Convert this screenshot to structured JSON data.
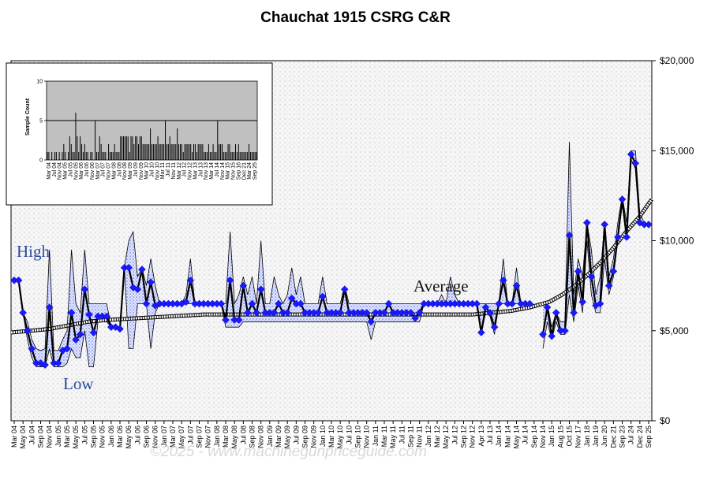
{
  "title": "Chauchat 1915 CSRG C&R",
  "watermark": "©2025 - www.machinegunpriceguide.com",
  "colors": {
    "plot_bg": "#f2f2f2",
    "grid_dot": "#b8b8c8",
    "avg_fill": "#5a6eea",
    "diamond": "#1a1aff",
    "price_line": "#000000",
    "inset_bg": "#c0c0c0"
  },
  "chart_data": [
    {
      "type": "line",
      "title": "Chauchat 1915 CSRG C&R",
      "ylim": [
        0,
        20000
      ],
      "y_ticks": [
        "$0",
        "$5,000",
        "$10,000",
        "$15,000",
        "$20,000"
      ],
      "y_tick_values": [
        0,
        5000,
        10000,
        15000,
        20000
      ],
      "x_tick_labels": [
        "Mar 04",
        "May 04",
        "Jul 04",
        "Sep 04",
        "Nov 04",
        "Jan 05",
        "Mar 05",
        "May 05",
        "Jul 05",
        "Sep 05",
        "Nov 05",
        "Jan 06",
        "Mar 06",
        "May 06",
        "Jul 06",
        "Sep 06",
        "Nov 06",
        "Jan 07",
        "Mar 07",
        "May 07",
        "Jul 07",
        "Sep 07",
        "Nov 07",
        "Jan 08",
        "Mar 08",
        "May 08",
        "Jul 08",
        "Sep 08",
        "Nov 08",
        "Jan 09",
        "Mar 09",
        "May 09",
        "Jul 09",
        "Sep 09",
        "Nov 09",
        "Jan 10",
        "Mar 10",
        "May 10",
        "Jul 10",
        "Sep 10",
        "Nov 10",
        "Jan 11",
        "Mar 11",
        "May 11",
        "Jul 11",
        "Sep 11",
        "Nov 11",
        "Jan 12",
        "Mar 12",
        "May 12",
        "Jul 12",
        "Sep 12",
        "Nov 12",
        "Apr 13",
        "Jul 13",
        "Jan 14",
        "Mar 14",
        "May 14",
        "Jul 14",
        "Sep 14",
        "Nov 14",
        "Jan 15",
        "Aug 15",
        "Oct 15",
        "Nov 17",
        "Jan 18",
        "Jan 19",
        "Jun 20",
        "Dec 21",
        "Sep 23",
        "Jul 24",
        "Dec 24",
        "Sep 25"
      ],
      "annotations": [
        "High",
        "Low",
        "Average"
      ],
      "grid": "dotted",
      "series": [
        {
          "role": "average_price",
          "values": [
            7800,
            7800,
            6000,
            5000,
            4000,
            3200,
            3200,
            3100,
            6300,
            3200,
            3200,
            3900,
            4000,
            6000,
            4500,
            4800,
            7300,
            5900,
            4900,
            5800,
            5800,
            5800,
            5200,
            5200,
            5100,
            8500,
            8500,
            7400,
            7300,
            8400,
            6500,
            7700,
            6400,
            6500,
            6500,
            6500,
            6500,
            6500,
            6500,
            6600,
            7800,
            6500,
            6500,
            6500,
            6500,
            6500,
            6500,
            6500,
            5600,
            7800,
            5600,
            5600,
            7500,
            6000,
            6500,
            6000,
            7300,
            6000,
            6000,
            6000,
            6500,
            6000,
            6000,
            6800,
            6500,
            6500,
            6000,
            6000,
            6000,
            6000,
            6900,
            6000,
            6000,
            6000,
            6000,
            7300,
            6000,
            6000,
            6000,
            6000,
            6000,
            5500,
            6000,
            6000,
            6000,
            6500,
            6000,
            6000,
            6000,
            6000,
            6000,
            5700,
            6000,
            6500,
            6500,
            6500,
            6500,
            6500,
            6500,
            6500,
            6500,
            6500,
            6500,
            6500,
            6500,
            6500,
            4900,
            6300,
            6000,
            5200,
            6500,
            7800,
            6500,
            6500,
            7500,
            6500,
            6500,
            6500,
            null,
            null,
            4800,
            6300,
            4700,
            6000,
            5000,
            5000,
            10300,
            6000,
            8300,
            6600,
            11000,
            8000,
            6400,
            6500,
            10900,
            7500,
            8300,
            10200,
            12300,
            10200,
            14800,
            14300,
            11000,
            10900,
            10900
          ]
        },
        {
          "role": "high_price",
          "values": [
            7800,
            7800,
            6000,
            5500,
            4500,
            4000,
            3900,
            4000,
            9500,
            3900,
            3900,
            4500,
            5000,
            9500,
            6500,
            6000,
            9500,
            6500,
            6500,
            6500,
            6500,
            6500,
            5200,
            5200,
            5100,
            8500,
            10000,
            10500,
            8000,
            8500,
            7500,
            9000,
            7500,
            6500,
            6500,
            6500,
            6500,
            6500,
            6500,
            7000,
            9000,
            6500,
            6500,
            6500,
            6500,
            6500,
            6500,
            6500,
            6500,
            10500,
            6500,
            7000,
            8000,
            7000,
            8000,
            6500,
            10000,
            6500,
            6500,
            8000,
            7000,
            6500,
            7000,
            8500,
            7000,
            8000,
            6500,
            6500,
            6500,
            6500,
            8000,
            6500,
            6500,
            6500,
            6500,
            7500,
            6500,
            6500,
            6500,
            6500,
            6500,
            6500,
            6500,
            6500,
            6500,
            6500,
            6500,
            6500,
            6500,
            6500,
            6500,
            6500,
            6500,
            6500,
            6500,
            6500,
            6500,
            7000,
            6500,
            8000,
            7000,
            6500,
            6500,
            6500,
            6500,
            6500,
            6500,
            6500,
            6500,
            6500,
            6500,
            9000,
            6500,
            6500,
            8500,
            6500,
            6500,
            6500,
            null,
            null,
            6500,
            6500,
            5200,
            6000,
            5500,
            5500,
            15500,
            7000,
            9000,
            8000,
            11000,
            9500,
            7000,
            8000,
            11000,
            8000,
            9000,
            11000,
            12500,
            11000,
            15000,
            15000,
            11500,
            11000,
            10900
          ]
        },
        {
          "role": "low_price",
          "values": [
            7800,
            7800,
            6000,
            4500,
            3500,
            3000,
            3000,
            3000,
            4000,
            3000,
            3000,
            3000,
            3200,
            4000,
            3500,
            3500,
            5000,
            3000,
            3000,
            5500,
            5500,
            5500,
            5200,
            5200,
            5100,
            8500,
            4000,
            4000,
            6500,
            6500,
            6500,
            4000,
            6000,
            6500,
            6500,
            6500,
            6500,
            6500,
            6500,
            6500,
            6500,
            6500,
            6500,
            6500,
            6500,
            6500,
            6500,
            6500,
            5200,
            5200,
            5200,
            5200,
            5500,
            5500,
            5500,
            5500,
            5500,
            5500,
            5500,
            5500,
            5500,
            5500,
            5500,
            5500,
            5500,
            5500,
            5500,
            5500,
            5500,
            5500,
            5500,
            5500,
            5500,
            5500,
            5500,
            5500,
            5500,
            5500,
            5500,
            5500,
            5500,
            4500,
            5500,
            5500,
            5500,
            5500,
            5500,
            5500,
            5500,
            5500,
            5500,
            5500,
            5500,
            6500,
            6500,
            6500,
            6500,
            6500,
            6500,
            6500,
            6500,
            6500,
            6500,
            6500,
            6500,
            6500,
            4800,
            6000,
            5800,
            4800,
            6500,
            6500,
            6500,
            6500,
            6500,
            6500,
            6500,
            6500,
            null,
            null,
            4000,
            5500,
            4500,
            5500,
            4800,
            4800,
            7000,
            5500,
            7500,
            6000,
            10000,
            7000,
            6000,
            6000,
            9000,
            7000,
            8000,
            10000,
            12000,
            10000,
            14500,
            14000,
            11000,
            10800,
            10900
          ]
        },
        {
          "role": "trend",
          "values": [
            4900,
            5100,
            5300,
            5500,
            5600,
            5700,
            5800,
            5900,
            5900,
            5900,
            5900,
            5900,
            5900,
            5900,
            5900,
            5900,
            5900,
            5900,
            5900,
            5900,
            6000,
            6100,
            6300,
            6600,
            7000,
            7500,
            8100,
            8800,
            9600,
            10500,
            11300,
            12300
          ]
        }
      ],
      "trend_x_fraction": [
        0,
        0.06,
        0.09,
        0.12,
        0.15,
        0.2,
        0.25,
        0.3,
        0.35,
        0.4,
        0.45,
        0.5,
        0.55,
        0.6,
        0.62,
        0.64,
        0.66,
        0.68,
        0.7,
        0.72,
        0.75,
        0.78,
        0.81,
        0.84,
        0.86,
        0.88,
        0.9,
        0.92,
        0.94,
        0.96,
        0.98,
        1.0
      ]
    },
    {
      "type": "bar",
      "title": "",
      "ylabel": "Sample Count",
      "ylim": [
        0,
        10
      ],
      "y_ticks": [
        "0",
        "5",
        "10"
      ],
      "reference_line": 5,
      "x_tick_labels": [
        "Mar 04",
        "Jul 04",
        "Nov 04",
        "Mar 05",
        "Jul 05",
        "Nov 05",
        "Mar 06",
        "Jul 06",
        "Nov 06",
        "Mar 07",
        "Jul 07",
        "Nov 07",
        "Mar 08",
        "Jul 08",
        "Nov 08",
        "Mar 09",
        "Jul 09",
        "Nov 09",
        "Mar 10",
        "Jul 10",
        "Nov 10",
        "Mar 11",
        "Jul 11",
        "Nov 11",
        "Mar 12",
        "Jul 12",
        "Nov 12",
        "Mar 13",
        "Jul 13",
        "Nov 13",
        "Mar 14",
        "Jul 14",
        "Nov 14",
        "Mar 15",
        "Nov 15",
        "Sep 16",
        "Dec 21",
        "Mar 24",
        "Sep 25"
      ],
      "values": [
        1,
        1,
        0,
        1,
        0,
        1,
        1,
        0,
        1,
        0,
        1,
        2,
        1,
        0,
        1,
        3,
        2,
        1,
        1,
        6,
        3,
        1,
        3,
        2,
        1,
        2,
        1,
        1,
        0,
        1,
        1,
        0,
        5,
        1,
        1,
        3,
        2,
        1,
        1,
        1,
        0,
        2,
        1,
        1,
        1,
        2,
        1,
        1,
        1,
        3,
        3,
        3,
        3,
        3,
        3,
        1,
        3,
        3,
        2,
        3,
        3,
        2,
        3,
        3,
        2,
        2,
        2,
        2,
        2,
        4,
        2,
        2,
        2,
        2,
        3,
        2,
        2,
        2,
        2,
        5,
        2,
        2,
        3,
        2,
        2,
        2,
        2,
        4,
        2,
        2,
        2,
        1,
        2,
        2,
        2,
        2,
        2,
        1,
        2,
        2,
        1,
        2,
        2,
        2,
        2,
        1,
        1,
        1,
        2,
        1,
        1,
        2,
        1,
        1,
        5,
        2,
        2,
        2,
        1,
        1,
        1,
        2,
        2,
        1,
        1,
        1,
        2,
        1,
        2,
        1,
        1,
        1,
        1,
        1,
        1,
        2,
        1,
        1,
        1,
        1,
        1
      ]
    }
  ]
}
